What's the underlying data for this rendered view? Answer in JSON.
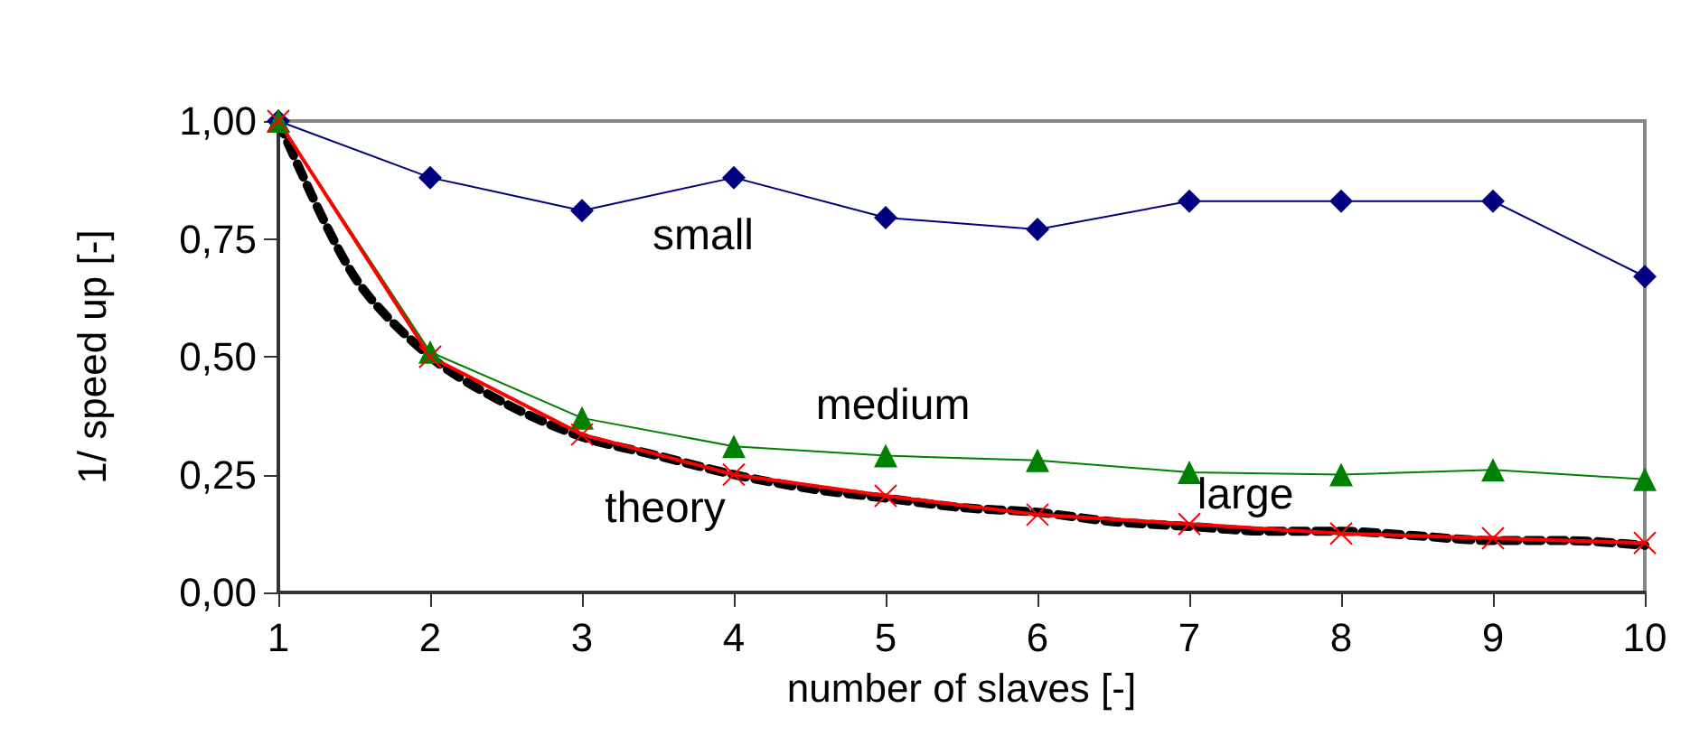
{
  "chart_data": {
    "type": "line",
    "xlabel": "number of slaves [-]",
    "ylabel": "1/ speed up [-]",
    "x": [
      1,
      2,
      3,
      4,
      5,
      6,
      7,
      8,
      9,
      10
    ],
    "series": [
      {
        "name": "small",
        "color": "#000080",
        "marker": "diamond",
        "values": [
          1.0,
          0.88,
          0.81,
          0.88,
          0.795,
          0.77,
          0.83,
          0.83,
          0.83,
          0.67
        ]
      },
      {
        "name": "medium",
        "color": "#008000",
        "marker": "triangle",
        "values": [
          1.0,
          0.51,
          0.37,
          0.31,
          0.29,
          0.28,
          0.255,
          0.25,
          0.26,
          0.24
        ]
      },
      {
        "name": "theory",
        "color": "#000000",
        "marker": "none",
        "line_style": "dashed",
        "x": [
          1,
          1.5,
          2,
          2.5,
          3,
          3.5,
          4,
          4.5,
          5,
          5.5,
          6,
          6.5,
          7,
          7.5,
          8,
          8.5,
          9,
          9.5,
          10
        ],
        "values": [
          1.0,
          0.67,
          0.5,
          0.4,
          0.33,
          0.29,
          0.25,
          0.22,
          0.2,
          0.18,
          0.17,
          0.15,
          0.14,
          0.13,
          0.13,
          0.12,
          0.11,
          0.11,
          0.1
        ]
      },
      {
        "name": "large",
        "color": "#ff0000",
        "marker": "cross",
        "values": [
          1.0,
          0.5,
          0.335,
          0.25,
          0.205,
          0.165,
          0.145,
          0.125,
          0.115,
          0.105
        ]
      }
    ],
    "xlim": [
      1,
      10
    ],
    "xticks": [
      1,
      2,
      3,
      4,
      5,
      6,
      7,
      8,
      9,
      10
    ],
    "ylim": [
      0,
      1
    ],
    "yticks": [
      {
        "value": 0,
        "label": "0,00"
      },
      {
        "value": 0.25,
        "label": "0,25"
      },
      {
        "value": 0.5,
        "label": "0,50"
      },
      {
        "value": 0.75,
        "label": "0,75"
      },
      {
        "value": 1,
        "label": "1,00"
      }
    ],
    "grid": false,
    "legend": false
  }
}
